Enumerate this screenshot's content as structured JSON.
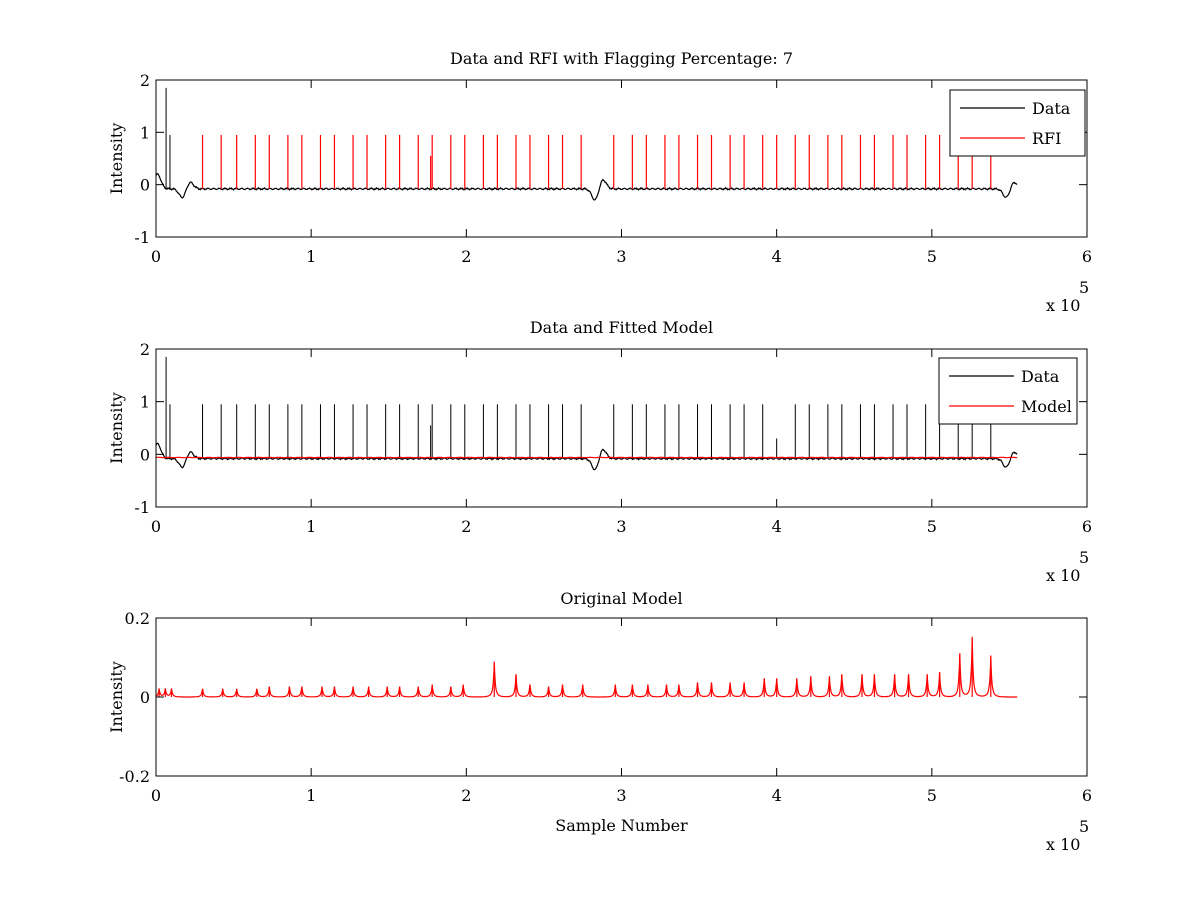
{
  "figure": {
    "background": "#ffffff"
  },
  "chart_data": [
    {
      "type": "line",
      "title": "Data and RFI with Flagging Percentage: 7",
      "xlabel": "",
      "ylabel": "Intensity",
      "xlim": [
        0,
        6
      ],
      "ylim": [
        -1,
        2
      ],
      "x_multiplier": "x 10",
      "x_multiplier_exp": "5",
      "xticks": [
        "0",
        "1",
        "2",
        "3",
        "4",
        "5",
        "6"
      ],
      "yticks": [
        "-1",
        "0",
        "1",
        "2"
      ],
      "legend": {
        "position": "top-right",
        "entries": [
          {
            "name": "Data",
            "color": "#000000"
          },
          {
            "name": "RFI",
            "color": "#ff0000"
          }
        ]
      },
      "baseline": -0.08,
      "data_end": 5.55,
      "series": [
        {
          "name": "Data",
          "color": "#000000",
          "kind": "baseline",
          "dips": [
            [
              0.01,
              0.2
            ],
            [
              0.17,
              -0.25
            ],
            [
              0.22,
              0.05
            ],
            [
              2.83,
              -0.3
            ],
            [
              2.88,
              0.1
            ],
            [
              5.48,
              -0.25
            ],
            [
              5.53,
              0.05
            ]
          ],
          "spikes": [
            [
              0.065,
              1.85
            ],
            [
              0.09,
              0.95
            ]
          ]
        },
        {
          "name": "RFI",
          "color": "#ff0000",
          "kind": "spikes",
          "spikes": [
            [
              0.3,
              0.95
            ],
            [
              0.42,
              0.95
            ],
            [
              0.52,
              0.95
            ],
            [
              0.64,
              0.95
            ],
            [
              0.73,
              0.95
            ],
            [
              0.85,
              0.95
            ],
            [
              0.94,
              0.95
            ],
            [
              1.06,
              0.95
            ],
            [
              1.15,
              0.95
            ],
            [
              1.27,
              0.95
            ],
            [
              1.36,
              0.95
            ],
            [
              1.48,
              0.95
            ],
            [
              1.57,
              0.95
            ],
            [
              1.69,
              0.95
            ],
            [
              1.77,
              0.55
            ],
            [
              1.78,
              0.95
            ],
            [
              1.9,
              0.95
            ],
            [
              1.99,
              0.95
            ],
            [
              2.11,
              0.95
            ],
            [
              2.2,
              0.95
            ],
            [
              2.32,
              0.95
            ],
            [
              2.41,
              0.95
            ],
            [
              2.53,
              0.95
            ],
            [
              2.62,
              0.95
            ],
            [
              2.74,
              0.95
            ],
            [
              2.95,
              0.95
            ],
            [
              3.07,
              0.95
            ],
            [
              3.16,
              0.95
            ],
            [
              3.28,
              0.95
            ],
            [
              3.37,
              0.95
            ],
            [
              3.49,
              0.95
            ],
            [
              3.58,
              0.95
            ],
            [
              3.7,
              0.95
            ],
            [
              3.79,
              0.95
            ],
            [
              3.91,
              0.95
            ],
            [
              4.0,
              0.95
            ],
            [
              4.12,
              0.95
            ],
            [
              4.21,
              0.95
            ],
            [
              4.33,
              0.95
            ],
            [
              4.42,
              0.95
            ],
            [
              4.54,
              0.95
            ],
            [
              4.63,
              0.95
            ],
            [
              4.75,
              0.95
            ],
            [
              4.84,
              0.95
            ],
            [
              4.96,
              0.95
            ],
            [
              5.05,
              0.95
            ],
            [
              5.17,
              0.95
            ],
            [
              5.26,
              0.95
            ],
            [
              5.38,
              0.95
            ]
          ]
        }
      ]
    },
    {
      "type": "line",
      "title": "Data and Fitted Model",
      "xlabel": "",
      "ylabel": "Intensity",
      "xlim": [
        0,
        6
      ],
      "ylim": [
        -1,
        2
      ],
      "x_multiplier": "x 10",
      "x_multiplier_exp": "5",
      "xticks": [
        "0",
        "1",
        "2",
        "3",
        "4",
        "5",
        "6"
      ],
      "yticks": [
        "-1",
        "0",
        "1",
        "2"
      ],
      "legend": {
        "position": "top-right",
        "entries": [
          {
            "name": "Data",
            "color": "#000000"
          },
          {
            "name": "Model",
            "color": "#ff0000"
          }
        ]
      },
      "baseline": -0.08,
      "data_end": 5.55,
      "series": [
        {
          "name": "Data",
          "color": "#000000",
          "kind": "baseline",
          "dips": [
            [
              0.01,
              0.2
            ],
            [
              0.17,
              -0.25
            ],
            [
              0.22,
              0.05
            ],
            [
              2.83,
              -0.3
            ],
            [
              2.88,
              0.1
            ],
            [
              5.48,
              -0.25
            ],
            [
              5.53,
              0.05
            ]
          ],
          "spikes": [
            [
              0.065,
              1.85
            ],
            [
              0.09,
              0.95
            ],
            [
              0.3,
              0.95
            ],
            [
              0.42,
              0.95
            ],
            [
              0.52,
              0.95
            ],
            [
              0.64,
              0.95
            ],
            [
              0.73,
              0.95
            ],
            [
              0.85,
              0.95
            ],
            [
              0.94,
              0.95
            ],
            [
              1.06,
              0.95
            ],
            [
              1.15,
              0.95
            ],
            [
              1.27,
              0.95
            ],
            [
              1.36,
              0.95
            ],
            [
              1.48,
              0.95
            ],
            [
              1.57,
              0.95
            ],
            [
              1.69,
              0.95
            ],
            [
              1.77,
              0.55
            ],
            [
              1.78,
              0.95
            ],
            [
              1.9,
              0.95
            ],
            [
              1.99,
              0.95
            ],
            [
              2.11,
              0.95
            ],
            [
              2.2,
              0.95
            ],
            [
              2.32,
              0.95
            ],
            [
              2.41,
              0.95
            ],
            [
              2.53,
              0.95
            ],
            [
              2.62,
              0.95
            ],
            [
              2.74,
              0.95
            ],
            [
              2.95,
              0.95
            ],
            [
              3.07,
              0.95
            ],
            [
              3.16,
              0.95
            ],
            [
              3.28,
              0.95
            ],
            [
              3.37,
              0.95
            ],
            [
              3.49,
              0.95
            ],
            [
              3.58,
              0.95
            ],
            [
              3.7,
              0.95
            ],
            [
              3.79,
              0.95
            ],
            [
              3.91,
              0.95
            ],
            [
              4.0,
              0.3
            ],
            [
              4.12,
              0.95
            ],
            [
              4.21,
              0.95
            ],
            [
              4.33,
              0.95
            ],
            [
              4.42,
              0.95
            ],
            [
              4.54,
              0.95
            ],
            [
              4.63,
              0.95
            ],
            [
              4.75,
              0.95
            ],
            [
              4.84,
              0.95
            ],
            [
              4.96,
              0.95
            ],
            [
              5.05,
              0.95
            ],
            [
              5.17,
              0.95
            ],
            [
              5.26,
              0.95
            ],
            [
              5.38,
              0.95
            ]
          ]
        },
        {
          "name": "Model",
          "color": "#ff0000",
          "kind": "flat",
          "value": -0.06,
          "from": 0,
          "to": 5.55
        }
      ]
    },
    {
      "type": "line",
      "title": "Original Model",
      "xlabel": "Sample Number",
      "ylabel": "Intensity",
      "xlim": [
        0,
        6
      ],
      "ylim": [
        -0.2,
        0.2
      ],
      "x_multiplier": "x 10",
      "x_multiplier_exp": "5",
      "xticks": [
        "0",
        "1",
        "2",
        "3",
        "4",
        "5",
        "6"
      ],
      "yticks": [
        "-0.2",
        "0",
        "0.2"
      ],
      "baseline": 0.0,
      "data_end": 5.55,
      "series": [
        {
          "name": "",
          "color": "#ff0000",
          "kind": "bumps",
          "bumps": [
            [
              0.02,
              0.02
            ],
            [
              0.06,
              0.02
            ],
            [
              0.1,
              0.02
            ],
            [
              0.3,
              0.02
            ],
            [
              0.43,
              0.02
            ],
            [
              0.52,
              0.02
            ],
            [
              0.65,
              0.02
            ],
            [
              0.73,
              0.025
            ],
            [
              0.86,
              0.025
            ],
            [
              0.94,
              0.025
            ],
            [
              1.07,
              0.025
            ],
            [
              1.15,
              0.025
            ],
            [
              1.27,
              0.025
            ],
            [
              1.37,
              0.025
            ],
            [
              1.49,
              0.025
            ],
            [
              1.57,
              0.025
            ],
            [
              1.69,
              0.025
            ],
            [
              1.78,
              0.03
            ],
            [
              1.9,
              0.025
            ],
            [
              1.98,
              0.03
            ],
            [
              2.18,
              0.085
            ],
            [
              2.32,
              0.055
            ],
            [
              2.41,
              0.03
            ],
            [
              2.53,
              0.025
            ],
            [
              2.62,
              0.03
            ],
            [
              2.75,
              0.03
            ],
            [
              2.96,
              0.03
            ],
            [
              3.07,
              0.03
            ],
            [
              3.17,
              0.03
            ],
            [
              3.29,
              0.03
            ],
            [
              3.37,
              0.03
            ],
            [
              3.49,
              0.035
            ],
            [
              3.58,
              0.035
            ],
            [
              3.7,
              0.035
            ],
            [
              3.79,
              0.035
            ],
            [
              3.92,
              0.045
            ],
            [
              4.0,
              0.045
            ],
            [
              4.13,
              0.045
            ],
            [
              4.22,
              0.05
            ],
            [
              4.34,
              0.05
            ],
            [
              4.42,
              0.055
            ],
            [
              4.55,
              0.055
            ],
            [
              4.63,
              0.055
            ],
            [
              4.76,
              0.055
            ],
            [
              4.85,
              0.055
            ],
            [
              4.97,
              0.055
            ],
            [
              5.05,
              0.06
            ],
            [
              5.18,
              0.105
            ],
            [
              5.26,
              0.145
            ],
            [
              5.38,
              0.1
            ]
          ]
        }
      ]
    }
  ]
}
